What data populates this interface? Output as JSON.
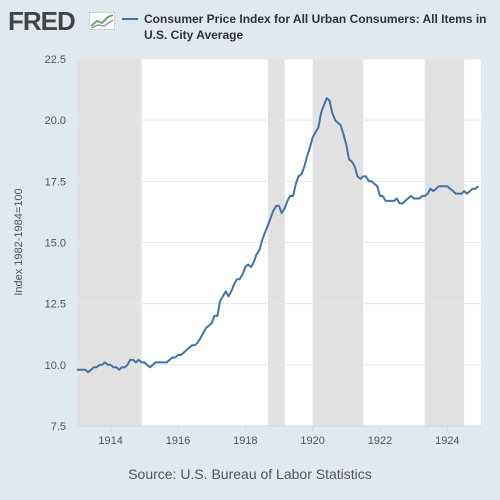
{
  "header": {
    "logo_text": "FRED",
    "legend_label": "Consumer Price Index for All Urban Consumers: All Items in U.S. City Average",
    "series_color": "#4572a7"
  },
  "footer": {
    "source": "Source: U.S. Bureau of Labor Statistics"
  },
  "chart_data": {
    "type": "line",
    "title": "",
    "xlabel": "",
    "ylabel": "Index 1982-1984=100",
    "xlim": [
      1913.0,
      1925.0
    ],
    "ylim": [
      7.5,
      22.5
    ],
    "x_ticks": [
      "1914",
      "1916",
      "1918",
      "1920",
      "1922",
      "1924"
    ],
    "y_ticks": [
      "7.5",
      "10.0",
      "12.5",
      "15.0",
      "17.5",
      "20.0",
      "22.5"
    ],
    "grid": true,
    "recessions": [
      [
        1913.0,
        1914.92
      ],
      [
        1918.67,
        1919.17
      ],
      [
        1920.0,
        1921.5
      ],
      [
        1923.33,
        1924.5
      ]
    ],
    "series": [
      {
        "name": "Consumer Price Index for All Urban Consumers: All Items in U.S. City Average",
        "x": [
          1913.0,
          1913.08,
          1913.17,
          1913.25,
          1913.33,
          1913.42,
          1913.5,
          1913.58,
          1913.67,
          1913.75,
          1913.83,
          1913.92,
          1914.0,
          1914.08,
          1914.17,
          1914.25,
          1914.33,
          1914.42,
          1914.5,
          1914.58,
          1914.67,
          1914.75,
          1914.83,
          1914.92,
          1915.0,
          1915.08,
          1915.17,
          1915.25,
          1915.33,
          1915.42,
          1915.5,
          1915.58,
          1915.67,
          1915.75,
          1915.83,
          1915.92,
          1916.0,
          1916.08,
          1916.17,
          1916.25,
          1916.33,
          1916.42,
          1916.5,
          1916.58,
          1916.67,
          1916.75,
          1916.83,
          1916.92,
          1917.0,
          1917.08,
          1917.17,
          1917.25,
          1917.33,
          1917.42,
          1917.5,
          1917.58,
          1917.67,
          1917.75,
          1917.83,
          1917.92,
          1918.0,
          1918.08,
          1918.17,
          1918.25,
          1918.33,
          1918.42,
          1918.5,
          1918.58,
          1918.67,
          1918.75,
          1918.83,
          1918.92,
          1919.0,
          1919.08,
          1919.17,
          1919.25,
          1919.33,
          1919.42,
          1919.5,
          1919.58,
          1919.67,
          1919.75,
          1919.83,
          1919.92,
          1920.0,
          1920.08,
          1920.17,
          1920.25,
          1920.33,
          1920.42,
          1920.5,
          1920.58,
          1920.67,
          1920.75,
          1920.83,
          1920.92,
          1921.0,
          1921.08,
          1921.17,
          1921.25,
          1921.33,
          1921.42,
          1921.5,
          1921.58,
          1921.67,
          1921.75,
          1921.83,
          1921.92,
          1922.0,
          1922.08,
          1922.17,
          1922.25,
          1922.33,
          1922.42,
          1922.5,
          1922.58,
          1922.67,
          1922.75,
          1922.83,
          1922.92,
          1923.0,
          1923.08,
          1923.17,
          1923.25,
          1923.33,
          1923.42,
          1923.5,
          1923.58,
          1923.67,
          1923.75,
          1923.83,
          1923.92,
          1924.0,
          1924.08,
          1924.17,
          1924.25,
          1924.33,
          1924.42,
          1924.5,
          1924.58,
          1924.67,
          1924.75,
          1924.83,
          1924.92
        ],
        "values": [
          9.8,
          9.8,
          9.8,
          9.8,
          9.7,
          9.8,
          9.9,
          9.9,
          10.0,
          10.0,
          10.1,
          10.0,
          10.0,
          9.9,
          9.9,
          9.8,
          9.9,
          9.9,
          10.0,
          10.2,
          10.2,
          10.1,
          10.2,
          10.1,
          10.1,
          10.0,
          9.9,
          10.0,
          10.1,
          10.1,
          10.1,
          10.1,
          10.1,
          10.2,
          10.3,
          10.3,
          10.4,
          10.4,
          10.5,
          10.6,
          10.7,
          10.8,
          10.8,
          10.9,
          11.1,
          11.3,
          11.5,
          11.6,
          11.7,
          12.0,
          12.0,
          12.6,
          12.8,
          13.0,
          12.8,
          13.0,
          13.3,
          13.5,
          13.5,
          13.7,
          14.0,
          14.1,
          14.0,
          14.2,
          14.5,
          14.7,
          15.1,
          15.4,
          15.7,
          16.0,
          16.3,
          16.5,
          16.5,
          16.2,
          16.4,
          16.7,
          16.9,
          16.9,
          17.4,
          17.7,
          17.8,
          18.1,
          18.5,
          18.9,
          19.3,
          19.5,
          19.7,
          20.3,
          20.6,
          20.9,
          20.8,
          20.3,
          20.0,
          19.9,
          19.8,
          19.4,
          19.0,
          18.4,
          18.3,
          18.1,
          17.7,
          17.6,
          17.7,
          17.7,
          17.5,
          17.5,
          17.4,
          17.3,
          16.9,
          16.9,
          16.7,
          16.7,
          16.7,
          16.7,
          16.8,
          16.6,
          16.6,
          16.7,
          16.8,
          16.9,
          16.8,
          16.8,
          16.8,
          16.9,
          16.9,
          17.0,
          17.2,
          17.1,
          17.2,
          17.3,
          17.3,
          17.3,
          17.3,
          17.2,
          17.1,
          17.0,
          17.0,
          17.0,
          17.1,
          17.0,
          17.1,
          17.2,
          17.2,
          17.3
        ]
      }
    ]
  }
}
